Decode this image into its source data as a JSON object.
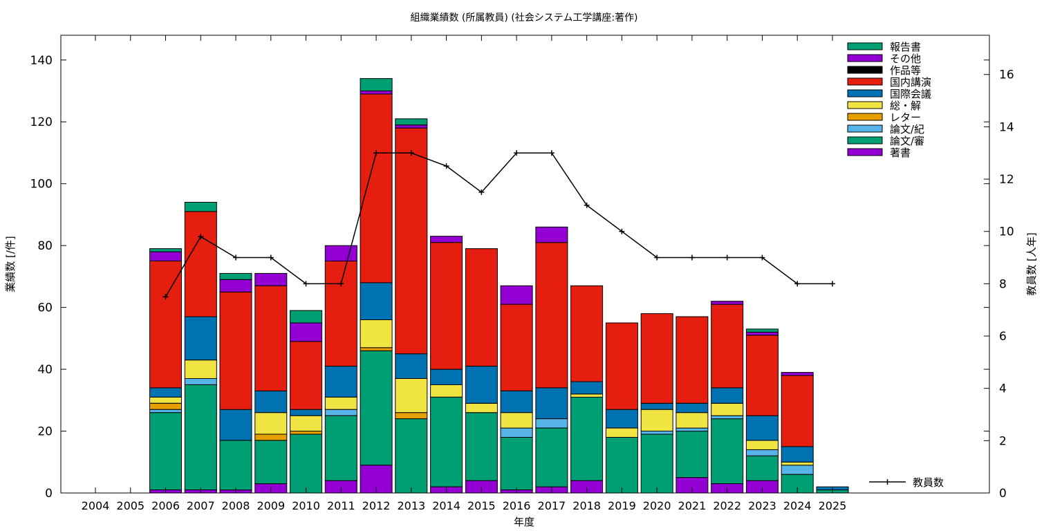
{
  "chart_data": {
    "type": "bar",
    "stacked": true,
    "title": "組織業績数 (所属教員) (社会システム工学講座:著作)",
    "xlabel": "年度",
    "ylabel": "業績数 [/件]",
    "y2label": "教員数 [人年]",
    "ylim": [
      0,
      148
    ],
    "y2lim": [
      0,
      17.5
    ],
    "yticks": [
      0,
      20,
      40,
      60,
      80,
      100,
      120,
      140
    ],
    "y2ticks": [
      0,
      2,
      4,
      6,
      8,
      10,
      12,
      14,
      16
    ],
    "grid": false,
    "legend_position": "top-right",
    "categories": [
      "2004",
      "2005",
      "2006",
      "2007",
      "2008",
      "2009",
      "2010",
      "2011",
      "2012",
      "2013",
      "2014",
      "2015",
      "2016",
      "2017",
      "2018",
      "2019",
      "2020",
      "2021",
      "2022",
      "2023",
      "2024",
      "2025"
    ],
    "series": [
      {
        "name": "著書",
        "color": "#9400d3",
        "values": [
          0,
          0,
          1,
          1,
          1,
          3,
          0,
          4,
          9,
          0,
          2,
          4,
          1,
          2,
          4,
          0,
          0,
          5,
          3,
          4,
          0,
          0
        ]
      },
      {
        "name": "論文/審",
        "color": "#009e73",
        "values": [
          0,
          0,
          25,
          34,
          16,
          14,
          19,
          21,
          37,
          24,
          29,
          22,
          17,
          19,
          27,
          18,
          19,
          15,
          21,
          8,
          6,
          1
        ]
      },
      {
        "name": "論文/紀",
        "color": "#56b4e9",
        "values": [
          0,
          0,
          1,
          2,
          0,
          0,
          0,
          2,
          0,
          0,
          0,
          0,
          3,
          3,
          0,
          0,
          1,
          1,
          1,
          2,
          3,
          0
        ]
      },
      {
        "name": "レター",
        "color": "#e69f00",
        "values": [
          0,
          0,
          2,
          0,
          0,
          2,
          1,
          0,
          1,
          2,
          0,
          0,
          0,
          0,
          0,
          0,
          0,
          0,
          0,
          0,
          0,
          0
        ]
      },
      {
        "name": "総・解",
        "color": "#f0e442",
        "values": [
          0,
          0,
          2,
          6,
          0,
          7,
          5,
          4,
          9,
          11,
          4,
          3,
          5,
          0,
          1,
          3,
          7,
          5,
          4,
          3,
          1,
          0
        ]
      },
      {
        "name": "国際会議",
        "color": "#0072b2",
        "values": [
          0,
          0,
          3,
          14,
          10,
          7,
          2,
          10,
          12,
          8,
          5,
          12,
          7,
          10,
          4,
          6,
          2,
          3,
          5,
          8,
          5,
          1
        ]
      },
      {
        "name": "国内講演",
        "color": "#e51e10",
        "values": [
          0,
          0,
          41,
          34,
          38,
          34,
          22,
          34,
          61,
          73,
          41,
          38,
          28,
          47,
          31,
          28,
          29,
          28,
          27,
          26,
          23,
          0
        ]
      },
      {
        "name": "作品等",
        "color": "#000000",
        "values": [
          0,
          0,
          0,
          0,
          0,
          0,
          0,
          0,
          0,
          0,
          0,
          0,
          0,
          0,
          0,
          0,
          0,
          0,
          0,
          0,
          0,
          0
        ]
      },
      {
        "name": "その他",
        "color": "#9400d3",
        "values": [
          0,
          0,
          3,
          0,
          4,
          4,
          6,
          5,
          1,
          1,
          2,
          0,
          6,
          5,
          0,
          0,
          0,
          0,
          1,
          1,
          1,
          0
        ]
      },
      {
        "name": "報告書",
        "color": "#009e73",
        "values": [
          0,
          0,
          1,
          3,
          2,
          0,
          4,
          0,
          4,
          2,
          0,
          0,
          0,
          0,
          0,
          0,
          0,
          0,
          0,
          1,
          0,
          0
        ]
      }
    ],
    "line_series": {
      "name": "教員数",
      "axis": "y2",
      "color": "#000000",
      "x": [
        "2006",
        "2007",
        "2008",
        "2009",
        "2010",
        "2011",
        "2012",
        "2013",
        "2014",
        "2015",
        "2016",
        "2017",
        "2018",
        "2019",
        "2020",
        "2021",
        "2022",
        "2023",
        "2024",
        "2025"
      ],
      "values": [
        7.5,
        9.8,
        9,
        9,
        8,
        8,
        13,
        13,
        12.5,
        11.5,
        13,
        13,
        11,
        10,
        9,
        9,
        9,
        9,
        8,
        8
      ]
    },
    "legend_order": [
      "報告書",
      "その他",
      "作品等",
      "国内講演",
      "国際会議",
      "総・解",
      "レター",
      "論文/紀",
      "論文/審",
      "著書"
    ]
  }
}
